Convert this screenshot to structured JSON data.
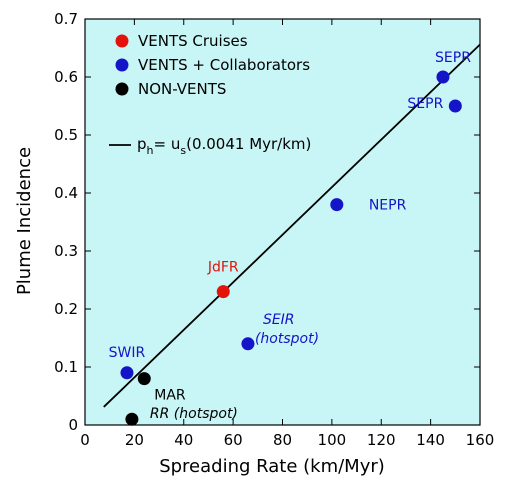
{
  "chart_data": {
    "type": "scatter",
    "title": "",
    "xlabel": "Spreading Rate (km/Myr)",
    "ylabel": "Plume Incidence",
    "xlim": [
      0,
      160
    ],
    "ylim": [
      0,
      0.7
    ],
    "xticks": [
      0,
      20,
      40,
      60,
      80,
      100,
      120,
      140,
      160
    ],
    "yticks": [
      0,
      0.1,
      0.2,
      0.3,
      0.4,
      0.5,
      0.6,
      0.7
    ],
    "plot_background": "#c8f5f5",
    "grid": false,
    "legend_position": "top-left",
    "series": [
      {
        "name": "VENTS Cruises",
        "color": "#e3120b",
        "points": [
          {
            "x": 56,
            "y": 0.23,
            "label": "JdFR"
          }
        ]
      },
      {
        "name": "VENTS + Collaborators",
        "color": "#1414c8",
        "points": [
          {
            "x": 17,
            "y": 0.09,
            "label": "SWIR"
          },
          {
            "x": 66,
            "y": 0.14,
            "label": "SEIR (hotspot)"
          },
          {
            "x": 102,
            "y": 0.38,
            "label": "NEPR"
          },
          {
            "x": 145,
            "y": 0.6,
            "label": "SEPR"
          },
          {
            "x": 150,
            "y": 0.55,
            "label": "SEPR"
          }
        ]
      },
      {
        "name": "NON-VENTS",
        "color": "#000000",
        "points": [
          {
            "x": 24,
            "y": 0.08,
            "label": "MAR"
          },
          {
            "x": 19,
            "y": 0.01,
            "label": "RR (hotspot)"
          }
        ]
      }
    ],
    "fit_line": {
      "legend": "= u (0.0041 Myr/km)",
      "lhs": "p",
      "lhs_sub": "h",
      "rhs_var": "u",
      "rhs_sub": "s",
      "rhs_rest": "(0.0041 Myr/km)",
      "slope": 0.0041,
      "x_start": 7.6,
      "x_end": 160,
      "color": "#000000"
    }
  }
}
